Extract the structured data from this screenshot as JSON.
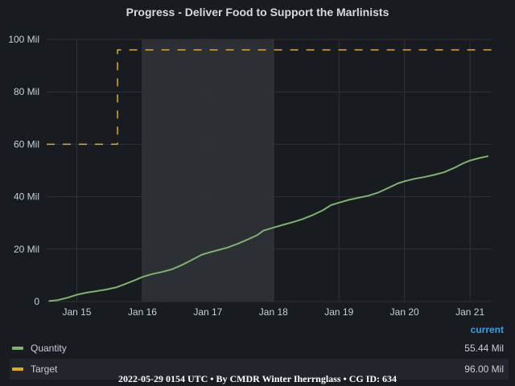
{
  "chart_data": {
    "type": "line",
    "title": "Progress - Deliver Food to Support the Marlinists",
    "y_tick_labels": [
      "0",
      "20 Mil",
      "40 Mil",
      "60 Mil",
      "80 Mil",
      "100 Mil"
    ],
    "y_ticks": [
      0,
      20,
      40,
      60,
      80,
      100
    ],
    "ylim": [
      0,
      100
    ],
    "y_unit": "Mil",
    "x_tick_labels": [
      "Jan 15",
      "Jan 16",
      "Jan 17",
      "Jan 18",
      "Jan 19",
      "Jan 20",
      "Jan 21"
    ],
    "x_ticks": [
      1,
      2,
      3,
      4,
      5,
      6,
      7
    ],
    "xlim": [
      0.54,
      7.33
    ],
    "highlight_region": [
      2,
      4
    ],
    "grid": true,
    "legend_header": "current",
    "legend_position": "bottom",
    "series": [
      {
        "name": "Quantity",
        "color": "#7eb26d",
        "current": "55.44 Mil",
        "style": "solid",
        "points": [
          [
            0.58,
            0.2
          ],
          [
            0.7,
            0.5
          ],
          [
            0.85,
            1.4
          ],
          [
            1.0,
            2.6
          ],
          [
            1.15,
            3.4
          ],
          [
            1.3,
            4.0
          ],
          [
            1.45,
            4.6
          ],
          [
            1.6,
            5.4
          ],
          [
            1.75,
            6.8
          ],
          [
            1.9,
            8.3
          ],
          [
            2.0,
            9.4
          ],
          [
            2.15,
            10.5
          ],
          [
            2.3,
            11.3
          ],
          [
            2.45,
            12.3
          ],
          [
            2.6,
            13.9
          ],
          [
            2.75,
            15.8
          ],
          [
            2.9,
            17.8
          ],
          [
            3.0,
            18.6
          ],
          [
            3.15,
            19.6
          ],
          [
            3.3,
            20.6
          ],
          [
            3.45,
            22.0
          ],
          [
            3.6,
            23.6
          ],
          [
            3.75,
            25.3
          ],
          [
            3.85,
            27.1
          ],
          [
            4.0,
            28.2
          ],
          [
            4.15,
            29.3
          ],
          [
            4.3,
            30.3
          ],
          [
            4.45,
            31.5
          ],
          [
            4.6,
            33.0
          ],
          [
            4.75,
            34.8
          ],
          [
            4.88,
            36.8
          ],
          [
            5.0,
            37.7
          ],
          [
            5.15,
            38.8
          ],
          [
            5.3,
            39.6
          ],
          [
            5.45,
            40.4
          ],
          [
            5.6,
            41.6
          ],
          [
            5.75,
            43.3
          ],
          [
            5.9,
            45.1
          ],
          [
            6.0,
            45.9
          ],
          [
            6.15,
            46.8
          ],
          [
            6.3,
            47.5
          ],
          [
            6.45,
            48.3
          ],
          [
            6.6,
            49.3
          ],
          [
            6.75,
            50.9
          ],
          [
            6.9,
            52.8
          ],
          [
            7.0,
            53.8
          ],
          [
            7.15,
            54.8
          ],
          [
            7.27,
            55.44
          ]
        ]
      },
      {
        "name": "Target",
        "color": "#e5ac0e",
        "current": "96.00 Mil",
        "style": "dashed",
        "points": [
          [
            0.54,
            60
          ],
          [
            1.62,
            60
          ],
          [
            1.62,
            96
          ],
          [
            7.33,
            96
          ]
        ]
      }
    ]
  },
  "footer": "2022-05-29 0154 UTC • By CMDR Winter Iherrnglass • CG ID: 634"
}
